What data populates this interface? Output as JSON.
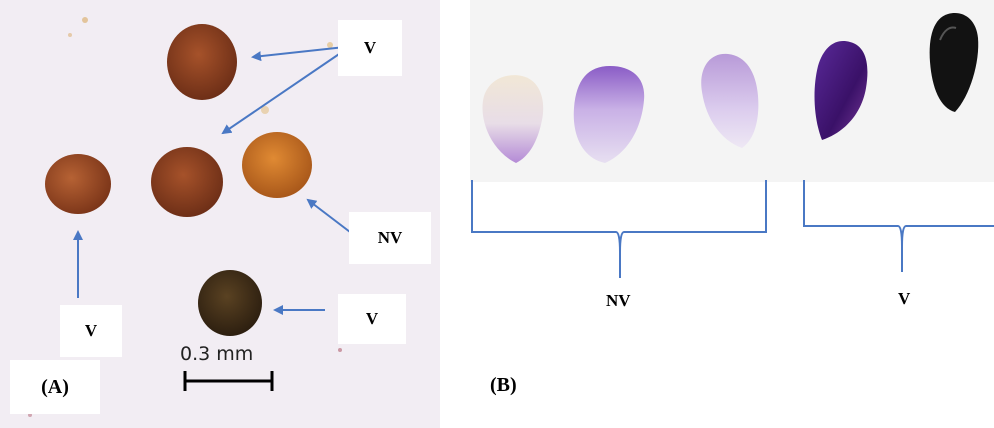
{
  "panel_a": {
    "letter": "(A)",
    "scale_label": "0.3 mm",
    "labels": [
      "V",
      "NV",
      "V",
      "V"
    ],
    "colors": {
      "background": "#f2edf3",
      "arrow": "#4a78c4",
      "viable": "#7d3a1e",
      "nonviable": "#c6701e",
      "dark": "#3a2a16"
    }
  },
  "panel_b": {
    "letter": "(B)",
    "group_labels": [
      "NV",
      "V"
    ],
    "colors": {
      "background": "#f4f4f4",
      "bracket": "#4a78c4",
      "purple": "#8e63c4",
      "dark_purple": "#3f1670",
      "black": "#121212"
    }
  }
}
